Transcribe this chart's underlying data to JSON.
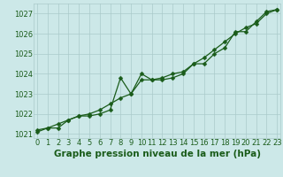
{
  "title": "Graphe pression niveau de la mer (hPa)",
  "background_color": "#cce8e8",
  "grid_color": "#aacaca",
  "line_color": "#1a5c1a",
  "marker_color": "#1a5c1a",
  "x_values": [
    0,
    1,
    2,
    3,
    4,
    5,
    6,
    7,
    8,
    9,
    10,
    11,
    12,
    13,
    14,
    15,
    16,
    17,
    18,
    19,
    20,
    21,
    22,
    23
  ],
  "series1": [
    1021.2,
    1021.3,
    1021.3,
    1021.7,
    1021.9,
    1021.9,
    1022.0,
    1022.2,
    1023.8,
    1023.0,
    1024.0,
    1023.7,
    1023.7,
    1023.8,
    1024.0,
    1024.5,
    1024.5,
    1025.0,
    1025.3,
    1026.1,
    1026.1,
    1026.6,
    1027.1,
    1027.2
  ],
  "series2": [
    1021.1,
    1021.3,
    1021.5,
    1021.7,
    1021.9,
    1022.0,
    1022.2,
    1022.5,
    1022.8,
    1023.0,
    1023.7,
    1023.7,
    1023.8,
    1024.0,
    1024.1,
    1024.5,
    1024.8,
    1025.2,
    1025.6,
    1026.0,
    1026.3,
    1026.5,
    1027.0,
    1027.2
  ],
  "ylim": [
    1020.8,
    1027.5
  ],
  "yticks": [
    1021,
    1022,
    1023,
    1024,
    1025,
    1026,
    1027
  ],
  "xlim": [
    -0.3,
    23.3
  ],
  "xticks": [
    0,
    1,
    2,
    3,
    4,
    5,
    6,
    7,
    8,
    9,
    10,
    11,
    12,
    13,
    14,
    15,
    16,
    17,
    18,
    19,
    20,
    21,
    22,
    23
  ],
  "title_fontsize": 7.5,
  "tick_fontsize": 6.0,
  "marker": "D",
  "marker_size": 2.5,
  "linewidth": 0.9
}
